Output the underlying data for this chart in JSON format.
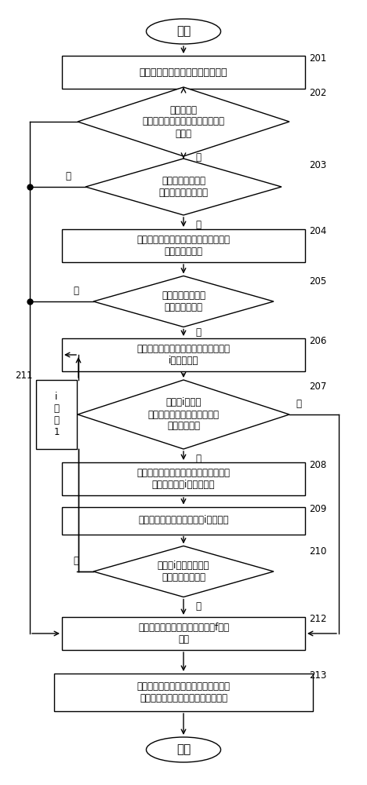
{
  "bg": "#ffffff",
  "nodes": {
    "start": {
      "text": "开始"
    },
    "201": {
      "text": "确定空调器的控制模式为制冷模式"
    },
    "202": {
      "text": "判断空调器\n的环境温度是否大于或等于第一温\n度阈值"
    },
    "203": {
      "text": "判断空调器的运行\n状态是否为低风运行"
    },
    "204": {
      "text": "获取空调器的整机电流的第一值以及内\n风机的当前转速"
    },
    "205": {
      "text": "判断第一值是否大\n于预设电流阈值"
    },
    "206": {
      "text": "对当前转速与预设转速变化幅度进行第\ni次求差运算"
    },
    "207": {
      "text": "判断第i次求差\n运算得到的值是否小于或等于\n预设最低转速"
    },
    "208": {
      "text": "将内风机的当前转速降低预设转速变化\n幅度，得到第i个第一转速"
    },
    "209": {
      "text": "获取空调器的整机电流的第i个第二值"
    },
    "210": {
      "text": "判断第i个第二值是否\n大于预设电流阈值"
    },
    "211": {
      "text": "i\n自\n加\n1"
    },
    "212": {
      "text": "按照第二值和压缩机的工作频率f稳定\n运行"
    },
    "213": {
      "text": "在空调器稳定运行预设时间后，将内风\n机的转速的当前转速调节为预设转速"
    },
    "end": {
      "text": "结束"
    }
  },
  "font_cn": "SimHei",
  "font_fallbacks": [
    "Microsoft YaHei",
    "WenQuanYi Micro Hei",
    "Noto Sans CJK SC",
    "Arial Unicode MS"
  ],
  "lw": 1.0,
  "arrow_lw": 1.0
}
